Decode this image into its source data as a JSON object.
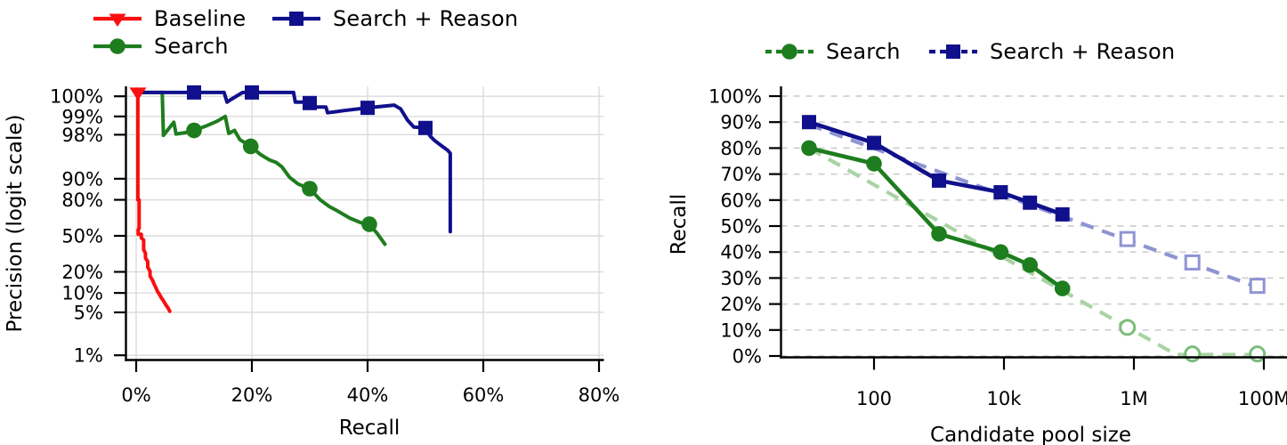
{
  "theme": {
    "background": "#ffffff",
    "axis_color": "#000000",
    "grid_color_left": "#dbdbdb",
    "grid_color_right": "#cfcfcf"
  },
  "chart_data": [
    {
      "id": "precision-recall",
      "type": "line",
      "title": "",
      "xlabel": "Recall",
      "ylabel": "Precision (logit scale)",
      "x_axis": {
        "scale": "linear",
        "unit": "%",
        "range": [
          -1.7,
          80.8
        ]
      },
      "x_ticks": [
        "0%",
        "20%",
        "40%",
        "60%",
        "80%"
      ],
      "x_tick_values": [
        0,
        20,
        40,
        60,
        80
      ],
      "y_axis": {
        "scale": "logit",
        "unit": "%",
        "range": [
          0.8,
          99.7
        ]
      },
      "y_ticks": [
        "100%",
        "99%",
        "98%",
        "90%",
        "80%",
        "50%",
        "20%",
        "10%",
        "5%",
        "1%"
      ],
      "y_tick_values": [
        100,
        99,
        98,
        90,
        80,
        50,
        20,
        10,
        5,
        1
      ],
      "grid": "solid",
      "legend_position": "top-left-two-columns",
      "series": [
        {
          "name": "Baseline",
          "color": "#fa0f0f",
          "marker": "triangle-down",
          "line_style": "solid",
          "points": [
            [
              0.3,
              99.6
            ],
            [
              0.3,
              80
            ],
            [
              0.5,
              80
            ],
            [
              0.5,
              57
            ],
            [
              0.35,
              56
            ],
            [
              0.35,
              51.5
            ],
            [
              0.9,
              51.5
            ],
            [
              0.9,
              48
            ],
            [
              1.3,
              46
            ],
            [
              1.3,
              37
            ],
            [
              1.6,
              34
            ],
            [
              1.6,
              30
            ],
            [
              2.0,
              27
            ],
            [
              2.0,
              23
            ],
            [
              2.4,
              20.5
            ],
            [
              2.4,
              17.5
            ],
            [
              2.8,
              15.5
            ],
            [
              3.1,
              13.5
            ],
            [
              3.4,
              12
            ],
            [
              3.7,
              10.5
            ],
            [
              4.0,
              9.6
            ],
            [
              4.3,
              8.6
            ],
            [
              4.7,
              7.6
            ],
            [
              5.1,
              6.6
            ],
            [
              5.5,
              5.9
            ],
            [
              5.8,
              5.2
            ]
          ],
          "markers_at": [
            [
              0.3,
              99.6
            ]
          ]
        },
        {
          "name": "Search",
          "color": "#1e7d1e",
          "marker": "circle",
          "line_style": "solid",
          "points": [
            [
              0.2,
              99.6
            ],
            [
              4.5,
              99.6
            ],
            [
              4.7,
              97.95
            ],
            [
              6.5,
              98.75
            ],
            [
              6.9,
              98.05
            ],
            [
              8.5,
              98.15
            ],
            [
              10,
              98.3
            ],
            [
              12,
              98.55
            ],
            [
              14,
              98.8
            ],
            [
              15.4,
              99.0
            ],
            [
              16.0,
              98.1
            ],
            [
              17.0,
              98.3
            ],
            [
              17.9,
              97.6
            ],
            [
              19.8,
              96.9
            ],
            [
              21.5,
              95.8
            ],
            [
              23.0,
              94.9
            ],
            [
              24.2,
              94.4
            ],
            [
              25.2,
              93.4
            ],
            [
              26.5,
              90.5
            ],
            [
              28.0,
              88.0
            ],
            [
              30.0,
              86.0
            ],
            [
              31.8,
              80.0
            ],
            [
              33.4,
              75.5
            ],
            [
              34.9,
              72.0
            ],
            [
              36.9,
              66.5
            ],
            [
              38.8,
              62.5
            ],
            [
              40.3,
              61.0
            ],
            [
              41.7,
              52.0
            ],
            [
              43.0,
              42.0
            ]
          ],
          "markers_at": [
            [
              10,
              98.3
            ],
            [
              19.8,
              96.9
            ],
            [
              30,
              86
            ],
            [
              40.3,
              61
            ]
          ]
        },
        {
          "name": "Search + Reason",
          "color": "#10108c",
          "marker": "square",
          "line_style": "solid",
          "points": [
            [
              0.2,
              99.6
            ],
            [
              15.2,
              99.6
            ],
            [
              15.7,
              99.42
            ],
            [
              16.3,
              99.47
            ],
            [
              18.4,
              99.6
            ],
            [
              27.2,
              99.6
            ],
            [
              27.5,
              99.42
            ],
            [
              30.2,
              99.42
            ],
            [
              30.5,
              99.3
            ],
            [
              32.8,
              99.3
            ],
            [
              33.1,
              99.13
            ],
            [
              36.0,
              99.2
            ],
            [
              40.0,
              99.28
            ],
            [
              44.6,
              99.35
            ],
            [
              45.7,
              99.25
            ],
            [
              46.9,
              98.85
            ],
            [
              48.0,
              98.5
            ],
            [
              50.0,
              98.45
            ],
            [
              50.8,
              97.9
            ],
            [
              51.5,
              97.55
            ],
            [
              52.3,
              97.2
            ],
            [
              53.1,
              96.8
            ],
            [
              53.8,
              96.45
            ],
            [
              54.3,
              96.0
            ],
            [
              54.3,
              54.0
            ]
          ],
          "markers_at": [
            [
              10,
              99.6
            ],
            [
              20,
              99.6
            ],
            [
              30,
              99.4
            ],
            [
              40,
              99.28
            ],
            [
              50,
              98.45
            ]
          ]
        }
      ]
    },
    {
      "id": "recall-vs-pool-size",
      "type": "line",
      "title": "",
      "xlabel": "Candidate pool size",
      "ylabel": "Recall",
      "x_axis": {
        "scale": "log10",
        "range_log10": [
          0.55,
          8.35
        ]
      },
      "x_ticks": [
        {
          "label": "100",
          "log10": 2
        },
        {
          "label": "10k",
          "log10": 4
        },
        {
          "label": "1M",
          "log10": 6
        },
        {
          "label": "100M",
          "log10": 8
        }
      ],
      "y_axis": {
        "scale": "linear",
        "unit": "%",
        "range": [
          0,
          100
        ]
      },
      "y_ticks": [
        "100%",
        "90%",
        "80%",
        "70%",
        "60%",
        "50%",
        "40%",
        "30%",
        "20%",
        "10%",
        "0%"
      ],
      "y_tick_values": [
        100,
        90,
        80,
        70,
        60,
        50,
        40,
        30,
        20,
        10,
        0
      ],
      "grid": "dashed-horizontal",
      "legend_position": "top-center",
      "series": [
        {
          "name": "Search",
          "color": "#1e7d1e",
          "marker": "circle",
          "line_style": "solid-with-dashed-extrapolation",
          "solid_points_log10": [
            [
              1,
              80
            ],
            [
              2,
              74
            ],
            [
              3,
              47
            ],
            [
              3.95,
              40
            ],
            [
              4.4,
              35
            ],
            [
              4.9,
              26
            ]
          ],
          "open_points_log10": [
            [
              5.9,
              11
            ],
            [
              6.9,
              0.8
            ],
            [
              7.9,
              0.8
            ]
          ],
          "fit_color": "#a9d3a4",
          "open_marker_color": "#7bbd7b",
          "fit_points_log10": [
            [
              1,
              80
            ],
            [
              6.65,
              0.5
            ],
            [
              7.9,
              0.5
            ]
          ]
        },
        {
          "name": "Search + Reason",
          "color": "#10108c",
          "marker": "square",
          "line_style": "solid-with-dashed-extrapolation",
          "solid_points_log10": [
            [
              1,
              90
            ],
            [
              2,
              82
            ],
            [
              3,
              67.5
            ],
            [
              3.95,
              63
            ],
            [
              4.4,
              59
            ],
            [
              4.9,
              54.5
            ]
          ],
          "open_points_log10": [
            [
              5.9,
              45
            ],
            [
              6.9,
              36
            ],
            [
              7.9,
              27
            ]
          ],
          "fit_color": "#8f94d3",
          "open_marker_color": "#8f94d3",
          "fit_points_log10": [
            [
              1,
              89
            ],
            [
              7.9,
              26.5
            ]
          ]
        }
      ]
    }
  ]
}
